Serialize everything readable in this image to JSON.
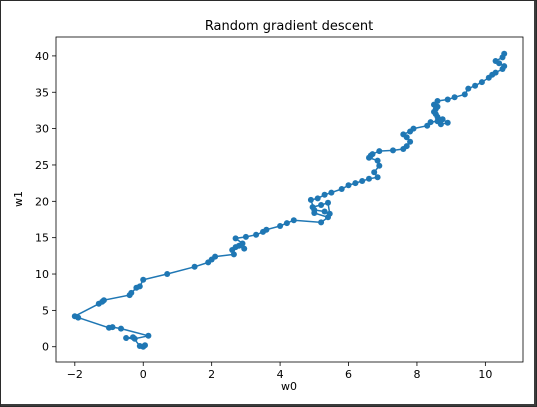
{
  "chart_data": {
    "type": "line",
    "title": "Random gradient descent",
    "xlabel": "w0",
    "ylabel": "w1",
    "xlim": [
      -2.55,
      11.1
    ],
    "ylim": [
      -2.1,
      42.6
    ],
    "xticks": [
      -2,
      0,
      2,
      4,
      6,
      8,
      10
    ],
    "yticks": [
      0,
      5,
      10,
      15,
      20,
      25,
      30,
      35,
      40
    ],
    "grid": false,
    "legend": "none",
    "series": [
      {
        "color": "#1f77b4",
        "marker": "circle",
        "x": [
          0.0,
          0.05,
          -0.1,
          -0.3,
          -0.5,
          -0.25,
          0.15,
          -0.65,
          -0.9,
          -1.0,
          -1.9,
          -2.0,
          -1.3,
          -1.2,
          -1.15,
          -0.4,
          -0.35,
          -0.2,
          -0.1,
          0.0,
          0.7,
          1.5,
          1.9,
          2.0,
          2.1,
          2.65,
          2.6,
          2.7,
          2.8,
          2.95,
          2.9,
          2.7,
          3.0,
          3.3,
          3.5,
          3.6,
          4.0,
          4.2,
          4.4,
          5.2,
          5.4,
          5.0,
          4.95,
          5.2,
          5.4,
          5.45,
          5.3,
          5.0,
          4.9,
          5.1,
          5.3,
          5.5,
          5.8,
          6.0,
          6.2,
          6.4,
          6.6,
          6.85,
          6.75,
          6.9,
          6.85,
          6.6,
          6.65,
          6.7,
          6.9,
          7.3,
          7.6,
          7.7,
          7.8,
          7.7,
          7.6,
          7.8,
          7.9,
          8.3,
          8.4,
          8.6,
          8.7,
          8.9,
          8.75,
          8.6,
          8.55,
          8.5,
          8.55,
          8.6,
          8.5,
          8.6,
          8.9,
          9.1,
          9.4,
          9.5,
          9.7,
          9.9,
          10.1,
          10.2,
          10.3,
          10.5,
          10.55,
          10.4,
          10.3,
          10.5,
          10.55
        ],
        "y": [
          0.0,
          0.2,
          0.1,
          1.3,
          1.2,
          1.1,
          1.5,
          2.5,
          2.7,
          2.6,
          4.0,
          4.2,
          5.9,
          6.2,
          6.4,
          7.1,
          7.4,
          8.1,
          8.3,
          9.2,
          10.0,
          11.0,
          11.6,
          12.0,
          12.4,
          12.7,
          13.3,
          13.7,
          13.9,
          13.5,
          14.2,
          14.9,
          15.1,
          15.4,
          15.8,
          16.1,
          16.6,
          17.0,
          17.4,
          17.1,
          17.8,
          18.4,
          19.2,
          19.5,
          19.8,
          18.3,
          18.6,
          18.8,
          20.2,
          20.4,
          20.9,
          21.2,
          21.7,
          22.2,
          22.5,
          22.8,
          23.1,
          23.3,
          24.0,
          24.9,
          25.6,
          26.0,
          26.3,
          26.5,
          26.9,
          27.0,
          27.2,
          27.6,
          28.2,
          28.8,
          29.2,
          29.6,
          30.0,
          30.4,
          30.9,
          31.0,
          30.6,
          30.8,
          31.3,
          31.6,
          32.0,
          32.3,
          32.7,
          33.0,
          33.3,
          33.8,
          34.0,
          34.3,
          34.7,
          35.5,
          35.9,
          36.4,
          37.0,
          37.4,
          37.7,
          38.2,
          38.6,
          39.0,
          39.3,
          39.8,
          40.3
        ]
      }
    ]
  }
}
